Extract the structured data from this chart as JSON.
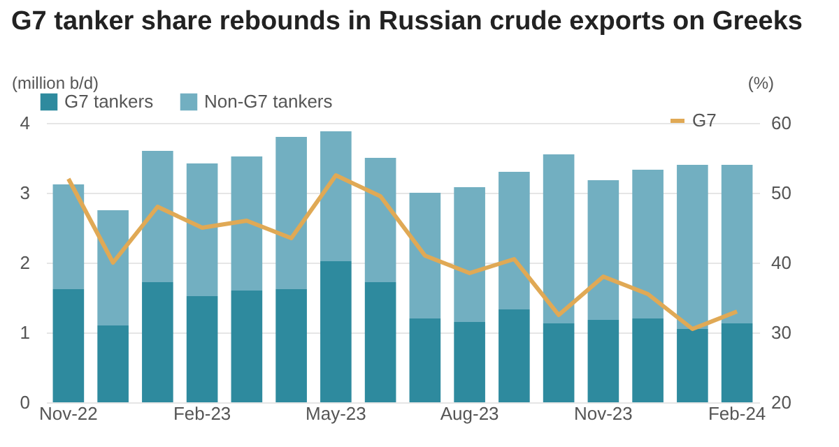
{
  "chart_data": {
    "type": "bar",
    "title": "G7 tanker share rebounds in Russian crude exports on Greeks",
    "categories": [
      "Nov-22",
      null,
      null,
      "Feb-23",
      null,
      null,
      "May-23",
      null,
      null,
      "Aug-23",
      null,
      null,
      "Nov-23",
      null,
      null,
      "Feb-24"
    ],
    "stacked": true,
    "series": [
      {
        "name": "G7 tankers",
        "color": "#2e8a9e",
        "values": [
          1.62,
          1.1,
          1.72,
          1.52,
          1.6,
          1.62,
          2.02,
          1.72,
          1.2,
          1.15,
          1.33,
          1.13,
          1.18,
          1.2,
          1.05,
          1.13
        ]
      },
      {
        "name": "Non-G7 tankers",
        "color": "#72afc1",
        "values": [
          1.5,
          1.65,
          1.88,
          1.9,
          1.92,
          2.18,
          1.86,
          1.78,
          1.8,
          1.93,
          1.97,
          2.42,
          2.0,
          2.13,
          2.35,
          2.27
        ]
      },
      {
        "name": "G7",
        "type": "line",
        "axis": "y2",
        "color": "#e0a955",
        "values": [
          52,
          40,
          48,
          45,
          46,
          43.5,
          52.5,
          49.5,
          41,
          38.5,
          40.5,
          32.5,
          38,
          35.5,
          30.5,
          33
        ]
      }
    ],
    "ylabel": "(million b/d)",
    "y2label": "(%)",
    "ylim": [
      0,
      4
    ],
    "yticks": [
      0,
      1,
      2,
      3,
      4
    ],
    "y2lim": [
      20,
      60
    ],
    "y2ticks": [
      20,
      30,
      40,
      50,
      60
    ],
    "grid": "y",
    "legend": "top",
    "line_style": "solid",
    "marker": "none"
  }
}
